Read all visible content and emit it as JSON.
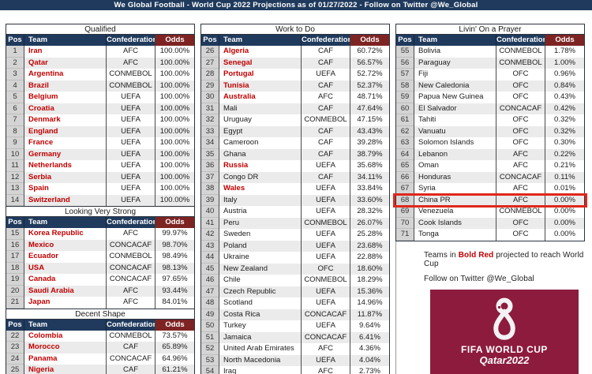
{
  "banner": {
    "text": "We Global Football - World Cup 2022 Projections as of 01/27/2022 - Follow on Twitter @We_Global"
  },
  "table_headers": {
    "pos": "Pos",
    "team": "Team",
    "confederation": "Confederation",
    "odds": "Odds"
  },
  "colors": {
    "header_navy": "#1f3a5c",
    "header_red": "#7d2423",
    "team_red": "#c00000",
    "highlight_red": "#e0271c",
    "logo_maroon": "#8d1b3d"
  },
  "highlight": {
    "team": "China PR"
  },
  "columns": [
    {
      "name": "left",
      "sections": [
        {
          "title": "Qualified",
          "rows": [
            {
              "pos": "1",
              "team": "Iran",
              "confederation": "AFC",
              "odds": "100.00%",
              "projected": true
            },
            {
              "pos": "2",
              "team": "Qatar",
              "confederation": "AFC",
              "odds": "100.00%",
              "projected": true
            },
            {
              "pos": "3",
              "team": "Argentina",
              "confederation": "CONMEBOL",
              "odds": "100.00%",
              "projected": true
            },
            {
              "pos": "4",
              "team": "Brazil",
              "confederation": "CONMEBOL",
              "odds": "100.00%",
              "projected": true
            },
            {
              "pos": "5",
              "team": "Belgium",
              "confederation": "UEFA",
              "odds": "100.00%",
              "projected": true
            },
            {
              "pos": "6",
              "team": "Croatia",
              "confederation": "UEFA",
              "odds": "100.00%",
              "projected": true
            },
            {
              "pos": "7",
              "team": "Denmark",
              "confederation": "UEFA",
              "odds": "100.00%",
              "projected": true
            },
            {
              "pos": "8",
              "team": "England",
              "confederation": "UEFA",
              "odds": "100.00%",
              "projected": true
            },
            {
              "pos": "9",
              "team": "France",
              "confederation": "UEFA",
              "odds": "100.00%",
              "projected": true
            },
            {
              "pos": "10",
              "team": "Germany",
              "confederation": "UEFA",
              "odds": "100.00%",
              "projected": true
            },
            {
              "pos": "11",
              "team": "Netherlands",
              "confederation": "UEFA",
              "odds": "100.00%",
              "projected": true
            },
            {
              "pos": "12",
              "team": "Serbia",
              "confederation": "UEFA",
              "odds": "100.00%",
              "projected": true
            },
            {
              "pos": "13",
              "team": "Spain",
              "confederation": "UEFA",
              "odds": "100.00%",
              "projected": true
            },
            {
              "pos": "14",
              "team": "Switzerland",
              "confederation": "UEFA",
              "odds": "100.00%",
              "projected": true
            }
          ]
        },
        {
          "title": "Looking Very Strong",
          "rows": [
            {
              "pos": "15",
              "team": "Korea Republic",
              "confederation": "AFC",
              "odds": "99.97%",
              "projected": true
            },
            {
              "pos": "16",
              "team": "Mexico",
              "confederation": "CONCACAF",
              "odds": "98.70%",
              "projected": true
            },
            {
              "pos": "17",
              "team": "Ecuador",
              "confederation": "CONMEBOL",
              "odds": "98.49%",
              "projected": true
            },
            {
              "pos": "18",
              "team": "USA",
              "confederation": "CONCACAF",
              "odds": "98.13%",
              "projected": true
            },
            {
              "pos": "19",
              "team": "Canada",
              "confederation": "CONCACAF",
              "odds": "97.65%",
              "projected": true
            },
            {
              "pos": "20",
              "team": "Saudi Arabia",
              "confederation": "AFC",
              "odds": "93.44%",
              "projected": true
            },
            {
              "pos": "21",
              "team": "Japan",
              "confederation": "AFC",
              "odds": "84.01%",
              "projected": true
            }
          ]
        },
        {
          "title": "Decent Shape",
          "rows": [
            {
              "pos": "22",
              "team": "Colombia",
              "confederation": "CONMEBOL",
              "odds": "73.57%",
              "projected": true
            },
            {
              "pos": "23",
              "team": "Morocco",
              "confederation": "CAF",
              "odds": "65.89%",
              "projected": true
            },
            {
              "pos": "24",
              "team": "Panama",
              "confederation": "CONCACAF",
              "odds": "64.96%",
              "projected": true
            },
            {
              "pos": "25",
              "team": "Nigeria",
              "confederation": "CAF",
              "odds": "61.21%",
              "projected": true
            }
          ]
        }
      ]
    },
    {
      "name": "middle",
      "sections": [
        {
          "title": "Work to Do",
          "rows": [
            {
              "pos": "26",
              "team": "Algeria",
              "confederation": "CAF",
              "odds": "60.72%",
              "projected": true
            },
            {
              "pos": "27",
              "team": "Senegal",
              "confederation": "CAF",
              "odds": "56.57%",
              "projected": true
            },
            {
              "pos": "28",
              "team": "Portugal",
              "confederation": "UEFA",
              "odds": "52.72%",
              "projected": true
            },
            {
              "pos": "29",
              "team": "Tunisia",
              "confederation": "CAF",
              "odds": "52.37%",
              "projected": true
            },
            {
              "pos": "30",
              "team": "Australia",
              "confederation": "AFC",
              "odds": "48.71%",
              "projected": true
            },
            {
              "pos": "31",
              "team": "Mali",
              "confederation": "CAF",
              "odds": "47.64%",
              "projected": false
            },
            {
              "pos": "32",
              "team": "Uruguay",
              "confederation": "CONMEBOL",
              "odds": "47.15%",
              "projected": false
            },
            {
              "pos": "33",
              "team": "Egypt",
              "confederation": "CAF",
              "odds": "43.43%",
              "projected": false
            },
            {
              "pos": "34",
              "team": "Cameroon",
              "confederation": "CAF",
              "odds": "39.28%",
              "projected": false
            },
            {
              "pos": "35",
              "team": "Ghana",
              "confederation": "CAF",
              "odds": "38.79%",
              "projected": false
            },
            {
              "pos": "36",
              "team": "Russia",
              "confederation": "UEFA",
              "odds": "35.68%",
              "projected": true
            },
            {
              "pos": "37",
              "team": "Congo DR",
              "confederation": "CAF",
              "odds": "34.11%",
              "projected": false
            },
            {
              "pos": "38",
              "team": "Wales",
              "confederation": "UEFA",
              "odds": "33.84%",
              "projected": true
            },
            {
              "pos": "39",
              "team": "Italy",
              "confederation": "UEFA",
              "odds": "33.60%",
              "projected": false
            },
            {
              "pos": "40",
              "team": "Austria",
              "confederation": "UEFA",
              "odds": "28.32%",
              "projected": false
            },
            {
              "pos": "41",
              "team": "Peru",
              "confederation": "CONMEBOL",
              "odds": "26.07%",
              "projected": false
            },
            {
              "pos": "42",
              "team": "Sweden",
              "confederation": "UEFA",
              "odds": "25.28%",
              "projected": false
            },
            {
              "pos": "43",
              "team": "Poland",
              "confederation": "UEFA",
              "odds": "23.68%",
              "projected": false
            },
            {
              "pos": "44",
              "team": "Ukraine",
              "confederation": "UEFA",
              "odds": "22.88%",
              "projected": false
            },
            {
              "pos": "45",
              "team": "New Zealand",
              "confederation": "OFC",
              "odds": "18.60%",
              "projected": false
            },
            {
              "pos": "46",
              "team": "Chile",
              "confederation": "CONMEBOL",
              "odds": "18.29%",
              "projected": false
            },
            {
              "pos": "47",
              "team": "Czech Republic",
              "confederation": "UEFA",
              "odds": "15.36%",
              "projected": false
            },
            {
              "pos": "48",
              "team": "Scotland",
              "confederation": "UEFA",
              "odds": "14.96%",
              "projected": false
            },
            {
              "pos": "49",
              "team": "Costa Rica",
              "confederation": "CONCACAF",
              "odds": "11.87%",
              "projected": false
            },
            {
              "pos": "50",
              "team": "Turkey",
              "confederation": "UEFA",
              "odds": "9.64%",
              "projected": false
            },
            {
              "pos": "51",
              "team": "Jamaica",
              "confederation": "CONCACAF",
              "odds": "6.41%",
              "projected": false
            },
            {
              "pos": "52",
              "team": "United Arab Emirates",
              "confederation": "AFC",
              "odds": "4.36%",
              "projected": false
            },
            {
              "pos": "53",
              "team": "North Macedonia",
              "confederation": "UEFA",
              "odds": "4.04%",
              "projected": false
            },
            {
              "pos": "54",
              "team": "Iraq",
              "confederation": "AFC",
              "odds": "2.73%",
              "projected": false
            }
          ]
        }
      ]
    },
    {
      "name": "right",
      "sections": [
        {
          "title": "Livin' On a Prayer",
          "rows": [
            {
              "pos": "55",
              "team": "Bolivia",
              "confederation": "CONMEBOL",
              "odds": "1.78%",
              "projected": false
            },
            {
              "pos": "56",
              "team": "Paraguay",
              "confederation": "CONMEBOL",
              "odds": "1.00%",
              "projected": false
            },
            {
              "pos": "57",
              "team": "Fiji",
              "confederation": "OFC",
              "odds": "0.96%",
              "projected": false
            },
            {
              "pos": "58",
              "team": "New Caledonia",
              "confederation": "OFC",
              "odds": "0.84%",
              "projected": false
            },
            {
              "pos": "59",
              "team": "Papua New Guinea",
              "confederation": "OFC",
              "odds": "0.43%",
              "projected": false
            },
            {
              "pos": "60",
              "team": "El Salvador",
              "confederation": "CONCACAF",
              "odds": "0.42%",
              "projected": false
            },
            {
              "pos": "61",
              "team": "Tahiti",
              "confederation": "OFC",
              "odds": "0.32%",
              "projected": false
            },
            {
              "pos": "62",
              "team": "Vanuatu",
              "confederation": "OFC",
              "odds": "0.32%",
              "projected": false
            },
            {
              "pos": "63",
              "team": "Solomon Islands",
              "confederation": "OFC",
              "odds": "0.30%",
              "projected": false
            },
            {
              "pos": "64",
              "team": "Lebanon",
              "confederation": "AFC",
              "odds": "0.22%",
              "projected": false
            },
            {
              "pos": "65",
              "team": "Oman",
              "confederation": "AFC",
              "odds": "0.21%",
              "projected": false
            },
            {
              "pos": "66",
              "team": "Honduras",
              "confederation": "CONCACAF",
              "odds": "0.11%",
              "projected": false
            },
            {
              "pos": "67",
              "team": "Syria",
              "confederation": "AFC",
              "odds": "0.01%",
              "projected": false
            },
            {
              "pos": "68",
              "team": "China PR",
              "confederation": "AFC",
              "odds": "0.00%",
              "projected": false
            },
            {
              "pos": "69",
              "team": "Venezuela",
              "confederation": "CONMEBOL",
              "odds": "0.00%",
              "projected": false
            },
            {
              "pos": "70",
              "team": "Cook Islands",
              "confederation": "OFC",
              "odds": "0.00%",
              "projected": false
            },
            {
              "pos": "71",
              "team": "Tonga",
              "confederation": "OFC",
              "odds": "0.00%",
              "projected": false
            }
          ]
        }
      ]
    }
  ],
  "footer": {
    "line1_prefix": "Teams in ",
    "line1_bold": "Bold Red",
    "line1_suffix": " projected to reach World Cup",
    "line2": "Follow on Twitter @We_Global"
  },
  "logo": {
    "line1": "FIFA WORLD CUP",
    "line2": "Qatar2022"
  }
}
